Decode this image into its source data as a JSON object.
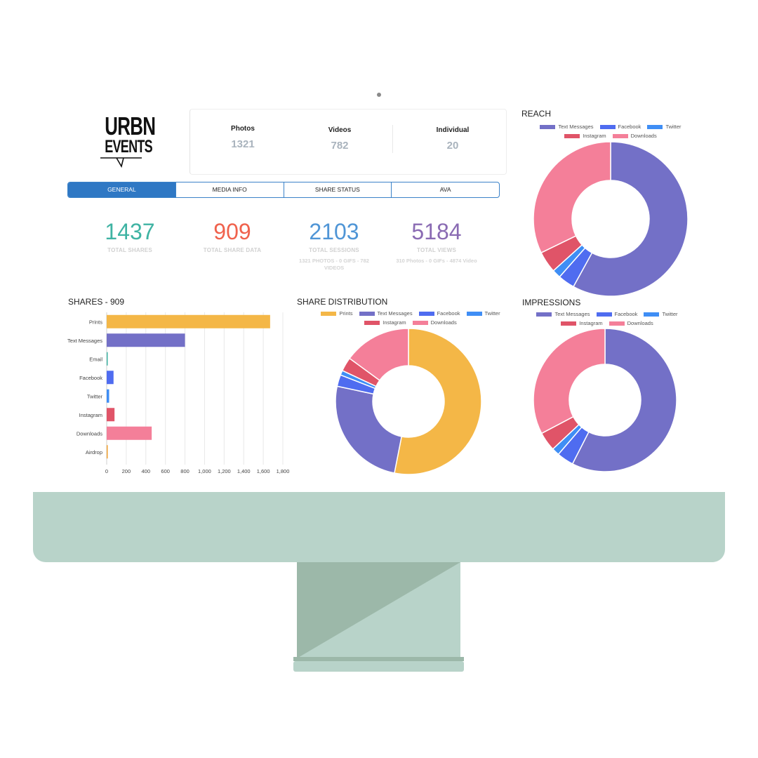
{
  "logo": {
    "line1": "URBN",
    "line2": "EVENTS"
  },
  "stats": [
    {
      "label": "Photos",
      "value": "1321"
    },
    {
      "label": "Videos",
      "value": "782"
    },
    {
      "label": "Individual",
      "value": "20"
    }
  ],
  "tabs": [
    "GENERAL",
    "MEDIA INFO",
    "SHARE STATUS",
    "AVA"
  ],
  "active_tab": 0,
  "kpis": [
    {
      "value": "1437",
      "label": "TOTAL SHARES",
      "sub": "",
      "color": "#3fb3a3"
    },
    {
      "value": "909",
      "label": "TOTAL SHARE DATA",
      "sub": "",
      "color": "#f0624d"
    },
    {
      "value": "2103",
      "label": "TOTAL SESSIONS",
      "sub": "1321 PHOTOS - 0 GIFS - 782 VIDEOS",
      "color": "#4f95d6"
    },
    {
      "value": "5184",
      "label": "TOTAL VIEWS",
      "sub": "310 Photos - 0 GIFs - 4874 Video",
      "color": "#8a6bb3"
    }
  ],
  "colors": {
    "Prints": "#f4b747",
    "Text Messages": "#7370c7",
    "Email": "#3fb3a3",
    "Facebook": "#4f6cf0",
    "Twitter": "#3f8ef5",
    "Instagram": "#e05468",
    "Downloads": "#f47f99",
    "Airdrop": "#f0a030"
  },
  "chart_data": [
    {
      "id": "shares",
      "type": "bar",
      "orientation": "horizontal",
      "title": "SHARES - 909",
      "categories": [
        "Prints",
        "Text Messages",
        "Email",
        "Facebook",
        "Twitter",
        "Instagram",
        "Downloads",
        "Airdrop"
      ],
      "values": [
        1670,
        800,
        5,
        70,
        25,
        80,
        460,
        8
      ],
      "xlim": [
        0,
        1800
      ],
      "ticks": [
        "0",
        "200",
        "400",
        "600",
        "800",
        "1,000",
        "1,200",
        "1,400",
        "1,600",
        "1,800"
      ],
      "grid": true
    },
    {
      "id": "share_distribution",
      "type": "pie",
      "donut": true,
      "title": "SHARE DISTRIBUTION",
      "legend": [
        "Prints",
        "Text Messages",
        "Facebook",
        "Twitter",
        "Instagram",
        "Downloads"
      ],
      "labels": [
        "Prints",
        "Text Messages",
        "Facebook",
        "Twitter",
        "Instagram",
        "Downloads"
      ],
      "values": [
        51.5,
        24.5,
        2.5,
        1.0,
        3.0,
        14.5
      ]
    },
    {
      "id": "reach",
      "type": "pie",
      "donut": true,
      "title": "REACH",
      "legend": [
        "Text Messages",
        "Facebook",
        "Twitter",
        "Instagram",
        "Downloads"
      ],
      "labels": [
        "Text Messages",
        "Facebook",
        "Twitter",
        "Instagram",
        "Downloads"
      ],
      "values": [
        58,
        3.5,
        1.8,
        4.5,
        32.2
      ]
    },
    {
      "id": "impressions",
      "type": "pie",
      "donut": true,
      "title": "IMPRESSIONS",
      "legend": [
        "Text Messages",
        "Facebook",
        "Twitter",
        "Instagram",
        "Downloads"
      ],
      "labels": [
        "Text Messages",
        "Facebook",
        "Twitter",
        "Instagram",
        "Downloads"
      ],
      "values": [
        57.5,
        3.8,
        1.7,
        4.3,
        32.7
      ]
    }
  ]
}
